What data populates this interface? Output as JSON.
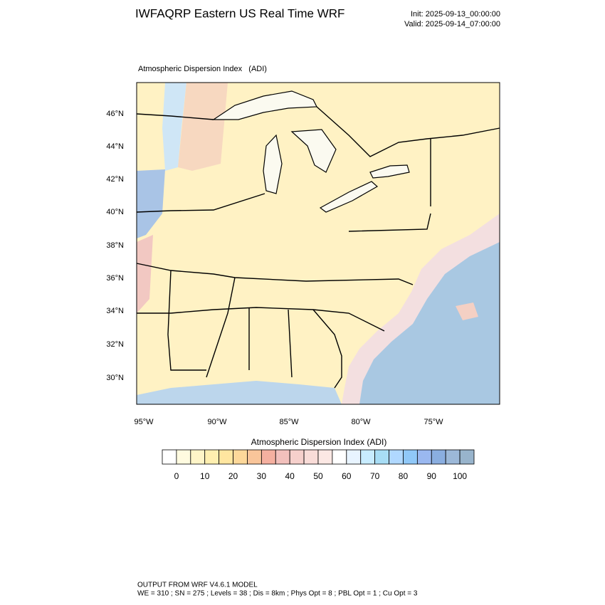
{
  "header": {
    "title": "IWFAQRP Eastern US Real Time WRF",
    "init": "Init: 2025-09-13_00:00:00",
    "valid": "Valid: 2025-09-14_07:00:00"
  },
  "map": {
    "title": "Atmospheric Dispersion Index   (ADI)",
    "lat_labels": [
      "46°N",
      "44°N",
      "42°N",
      "40°N",
      "38°N",
      "36°N",
      "34°N",
      "32°N",
      "30°N"
    ],
    "lon_labels": [
      "95°W",
      "90°W",
      "85°W",
      "80°W",
      "75°W"
    ]
  },
  "colorbar": {
    "title": "Atmospheric Dispersion Index (ADI)",
    "lim": [
      -5,
      105
    ],
    "ticks": [
      0,
      10,
      20,
      30,
      40,
      50,
      60,
      70,
      80,
      90,
      100
    ],
    "colors": [
      "#ffffff",
      "#fffbe0",
      "#fff5c8",
      "#ffefb0",
      "#ffe6a0",
      "#fdd89a",
      "#f9c59a",
      "#f5b0a0",
      "#f2c0bc",
      "#f6d0cc",
      "#f9dcd8",
      "#fce8e4",
      "#ffffff",
      "#e8f4ff",
      "#c8ecff",
      "#a8ddf5",
      "#b0d8ff",
      "#90c8f8",
      "#9ab8f0",
      "#8aaee0",
      "#9cb8d8",
      "#98b4cc"
    ]
  },
  "footer": {
    "line1": "OUTPUT FROM WRF V4.6.1 MODEL",
    "line2": "WE = 310 ; SN = 275 ; Levels = 38 ; Dis = 8km ; Phys Opt = 8 ; PBL Opt = 1 ; Cu Opt = 3"
  }
}
